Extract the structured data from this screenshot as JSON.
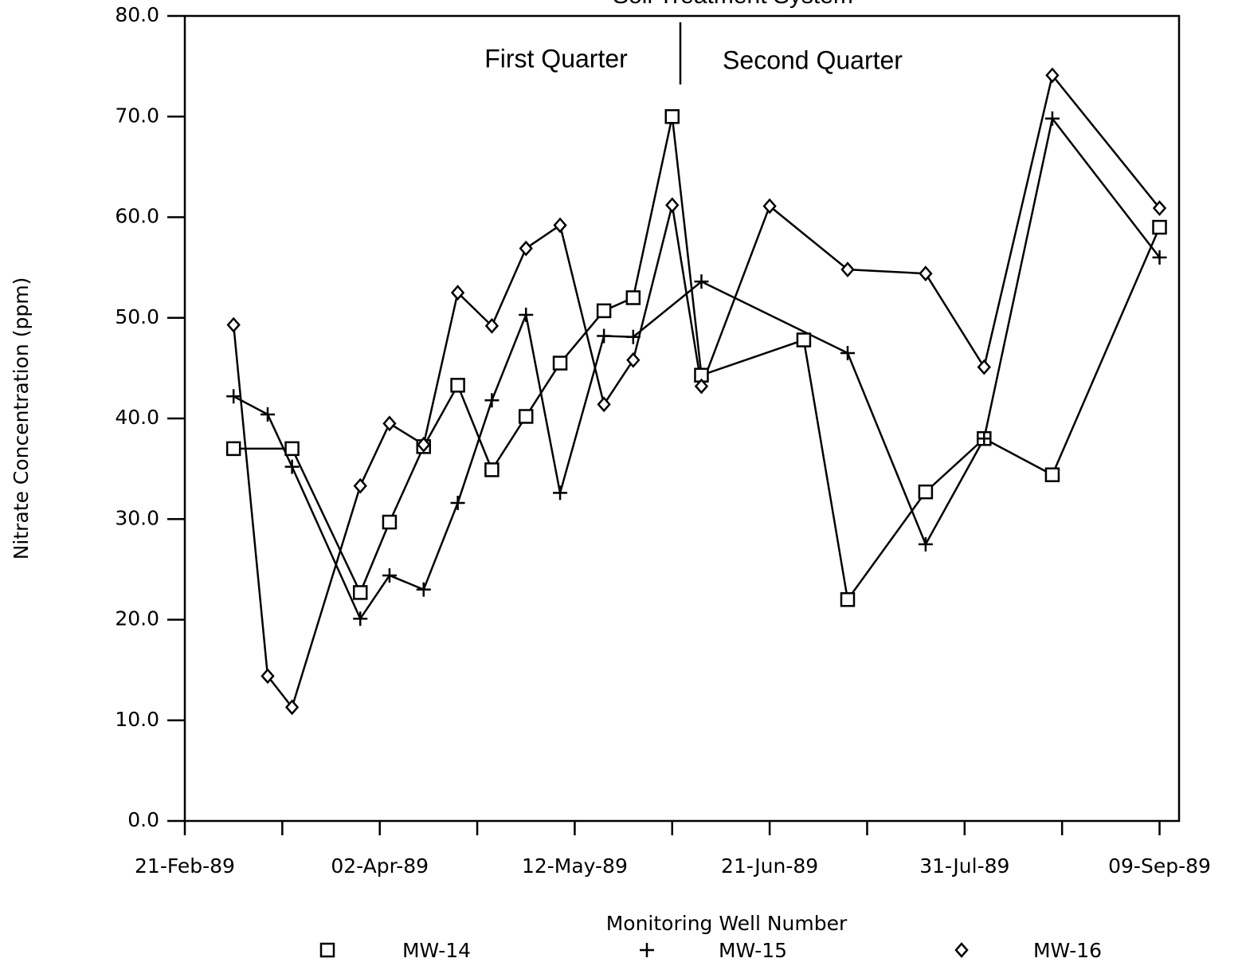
{
  "chart_data": {
    "type": "line",
    "title": "Soil Treatment System",
    "x_label": "Monitoring Well Number",
    "y_label": "Nitrate Concentration (ppm)",
    "annotations": [
      "First Quarter",
      "Second Quarter"
    ],
    "xlim": [
      "1989-02-21",
      "1989-09-13"
    ],
    "xticks": [
      {
        "value": "1989-02-21",
        "label": "21-Feb-89"
      },
      {
        "value": "1989-04-02",
        "label": "02-Apr-89"
      },
      {
        "value": "1989-05-12",
        "label": "12-May-89"
      },
      {
        "value": "1989-06-21",
        "label": "21-Jun-89"
      },
      {
        "value": "1989-07-31",
        "label": "31-Jul-89"
      },
      {
        "value": "1989-09-09",
        "label": "09-Sep-89"
      }
    ],
    "xminorticks": [
      "1989-03-13",
      "1989-04-22",
      "1989-06-01",
      "1989-07-11",
      "1989-08-20"
    ],
    "ylim": [
      0,
      80
    ],
    "yticks": [
      {
        "value": 0,
        "label": "0.0"
      },
      {
        "value": 10,
        "label": "10.0"
      },
      {
        "value": 20,
        "label": "20.0"
      },
      {
        "value": 30,
        "label": "30.0"
      },
      {
        "value": 40,
        "label": "40.0"
      },
      {
        "value": 50,
        "label": "50.0"
      },
      {
        "value": 60,
        "label": "60.0"
      },
      {
        "value": 70,
        "label": "70.0"
      },
      {
        "value": 80,
        "label": "80.0"
      }
    ],
    "series": [
      {
        "name": "MW-14",
        "color": "#000000",
        "marker": "square",
        "x": [
          "1989-03-03",
          "1989-03-15",
          "1989-03-29",
          "1989-04-04",
          "1989-04-11",
          "1989-04-18",
          "1989-04-25",
          "1989-05-02",
          "1989-05-09",
          "1989-05-18",
          "1989-05-24",
          "1989-06-01",
          "1989-06-07",
          "1989-06-28",
          "1989-07-07",
          "1989-07-23",
          "1989-08-04",
          "1989-08-18",
          "1989-09-09"
        ],
        "values": [
          37,
          37,
          22.7,
          29.7,
          37.2,
          43.3,
          34.9,
          40.2,
          45.5,
          50.7,
          52,
          70,
          44.3,
          47.8,
          22,
          32.7,
          38,
          34.4,
          59
        ]
      },
      {
        "name": "MW-15",
        "color": "#000000",
        "marker": "plus",
        "x": [
          "1989-03-03",
          "1989-03-10",
          "1989-03-15",
          "1989-03-29",
          "1989-04-04",
          "1989-04-11",
          "1989-04-18",
          "1989-04-25",
          "1989-05-02",
          "1989-05-09",
          "1989-05-18",
          "1989-05-24",
          "1989-06-07",
          "1989-07-07",
          "1989-07-23",
          "1989-08-04",
          "1989-08-18",
          "1989-09-09"
        ],
        "values": [
          42.2,
          40.4,
          35.2,
          20.1,
          24.4,
          23,
          31.6,
          41.8,
          50.3,
          32.6,
          48.2,
          48.1,
          53.6,
          46.5,
          27.5,
          38,
          69.8,
          56
        ]
      },
      {
        "name": "MW-16",
        "color": "#000000",
        "marker": "diamond",
        "x": [
          "1989-03-03",
          "1989-03-10",
          "1989-03-15",
          "1989-03-29",
          "1989-04-04",
          "1989-04-11",
          "1989-04-18",
          "1989-04-25",
          "1989-05-02",
          "1989-05-09",
          "1989-05-18",
          "1989-05-24",
          "1989-06-01",
          "1989-06-07",
          "1989-06-21",
          "1989-07-07",
          "1989-07-23",
          "1989-08-04",
          "1989-08-18",
          "1989-09-09"
        ],
        "values": [
          49.3,
          14.4,
          11.3,
          33.3,
          39.5,
          37.4,
          52.5,
          49.2,
          56.9,
          59.2,
          41.4,
          45.8,
          61.2,
          43.2,
          61.1,
          54.8,
          54.4,
          45.1,
          74.1,
          60.9
        ]
      }
    ]
  }
}
